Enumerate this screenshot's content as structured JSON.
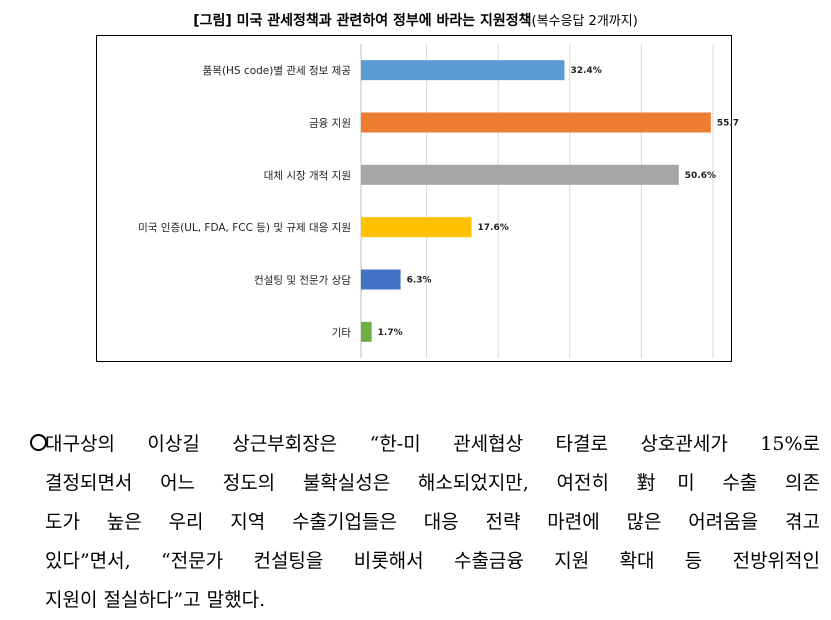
{
  "figure": {
    "title": "[그림] 미국 관세정책과 관련하여 정부에 바라는 지원정책",
    "title_note": "(복수응답 2개까지)"
  },
  "chart_data": {
    "type": "bar",
    "orientation": "horizontal",
    "categories": [
      "품목(HS code)별 관세 정보 제공",
      "금융 지원",
      "대체 시장 개척 지원",
      "미국 인증(UL, FDA, FCC 등) 및 규제 대응 지원",
      "컨설팅 및 전문가 상담",
      "기타"
    ],
    "values": [
      32.4,
      55.7,
      50.6,
      17.6,
      6.3,
      1.7
    ],
    "value_labels": [
      "32.4%",
      "55.7",
      "50.6%",
      "17.6%",
      "6.3%",
      "1.7%"
    ],
    "colors": [
      "#5b9bd5",
      "#ed7d31",
      "#a5a5a5",
      "#ffc000",
      "#4472c4",
      "#70ad47"
    ],
    "xlim": [
      0,
      57
    ],
    "grid": true
  },
  "paragraph": {
    "lines": [
      "대구상의 이상길 상근부회장은 “한-미 관세협상 타결로 상호관세가 15%로",
      "결정되면서 어느 정도의 불확실성은 해소되었지만, 여전히 對미 수출 의존",
      "도가 높은 우리 지역 수출기업들은 대응 전략 마련에 많은 어려움을 겪고",
      "있다”면서, “전문가 컨설팅을 비롯해서 수출금융 지원 확대 등 전방위적인",
      "지원이 절실하다”고 말했다."
    ]
  }
}
